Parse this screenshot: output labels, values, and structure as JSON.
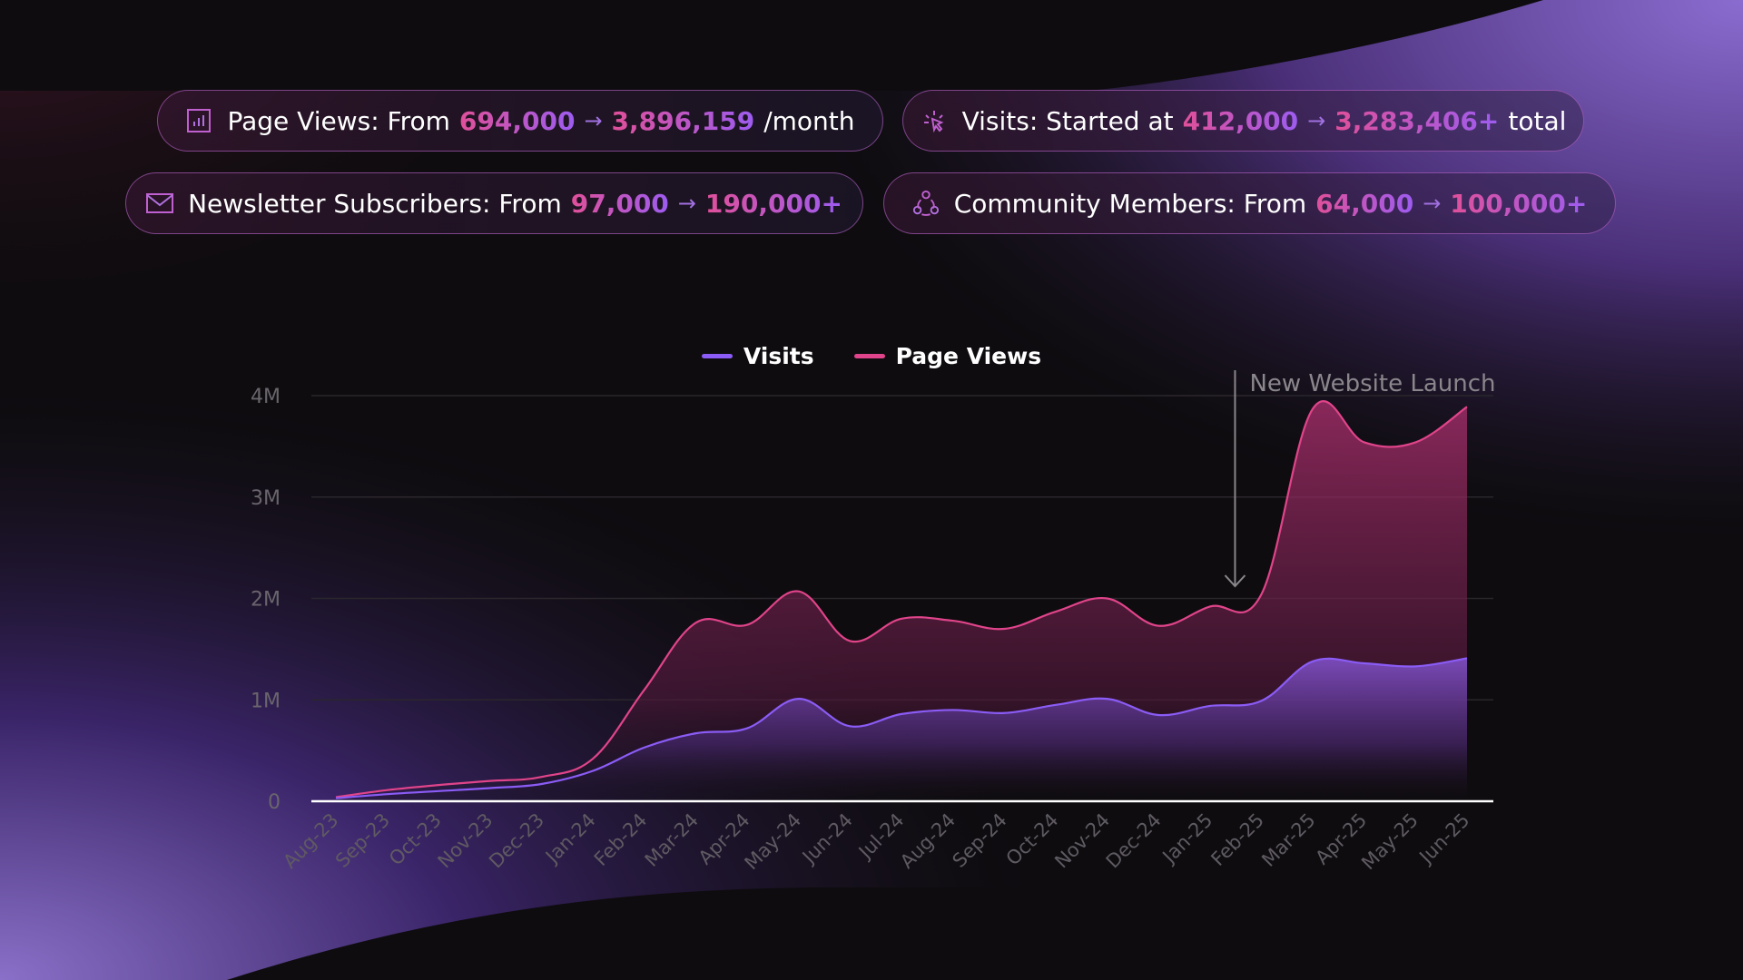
{
  "stats": [
    {
      "icon": "bar-chart-icon",
      "label": "Page Views: From",
      "from": "694,000",
      "arrow": "→",
      "to": "3,896,159",
      "suffix": "/month"
    },
    {
      "icon": "cursor-click-icon",
      "label": "Visits: Started at",
      "from": "412,000",
      "arrow": "→",
      "to": "3,283,406+",
      "suffix": "total"
    },
    {
      "icon": "mail-icon",
      "label": "Newsletter Subscribers: From",
      "from": "97,000",
      "arrow": "→",
      "to": "190,000+",
      "suffix": ""
    },
    {
      "icon": "community-icon",
      "label": "Community Members: From",
      "from": "64,000",
      "arrow": "→",
      "to": "100,000+",
      "suffix": ""
    }
  ],
  "colors": {
    "visits": "#8b5cf6",
    "page_views": "#e0448a",
    "background": "#0e0c0f"
  },
  "chart_data": {
    "type": "area",
    "categories": [
      "Aug-23",
      "Sep-23",
      "Oct-23",
      "Nov-23",
      "Dec-23",
      "Jan-24",
      "Feb-24",
      "Mar-24",
      "Apr-24",
      "May-24",
      "Jun-24",
      "Jul-24",
      "Aug-24",
      "Sep-24",
      "Oct-24",
      "Nov-24",
      "Dec-24",
      "Jan-25",
      "Feb-25",
      "Mar-25",
      "Apr-25",
      "May-25",
      "Jun-25"
    ],
    "series": [
      {
        "name": "Visits",
        "color": "#8b5cf6",
        "values": [
          30000,
          70000,
          100000,
          130000,
          170000,
          300000,
          530000,
          670000,
          720000,
          1010000,
          740000,
          860000,
          900000,
          870000,
          950000,
          1010000,
          850000,
          940000,
          990000,
          1380000,
          1360000,
          1330000,
          1410000
        ]
      },
      {
        "name": "Page Views",
        "color": "#e0448a",
        "values": [
          40000,
          110000,
          160000,
          200000,
          240000,
          420000,
          1100000,
          1760000,
          1740000,
          2070000,
          1580000,
          1800000,
          1780000,
          1700000,
          1870000,
          2000000,
          1730000,
          1920000,
          2040000,
          3870000,
          3540000,
          3540000,
          3890000
        ]
      }
    ],
    "y_ticks": [
      "0",
      "1M",
      "2M",
      "3M",
      "4M"
    ],
    "ylim": [
      0,
      4000000
    ],
    "grid": true,
    "legend": "top-center",
    "annotation": {
      "label": "New Website Launch",
      "at": "Feb-25"
    }
  }
}
